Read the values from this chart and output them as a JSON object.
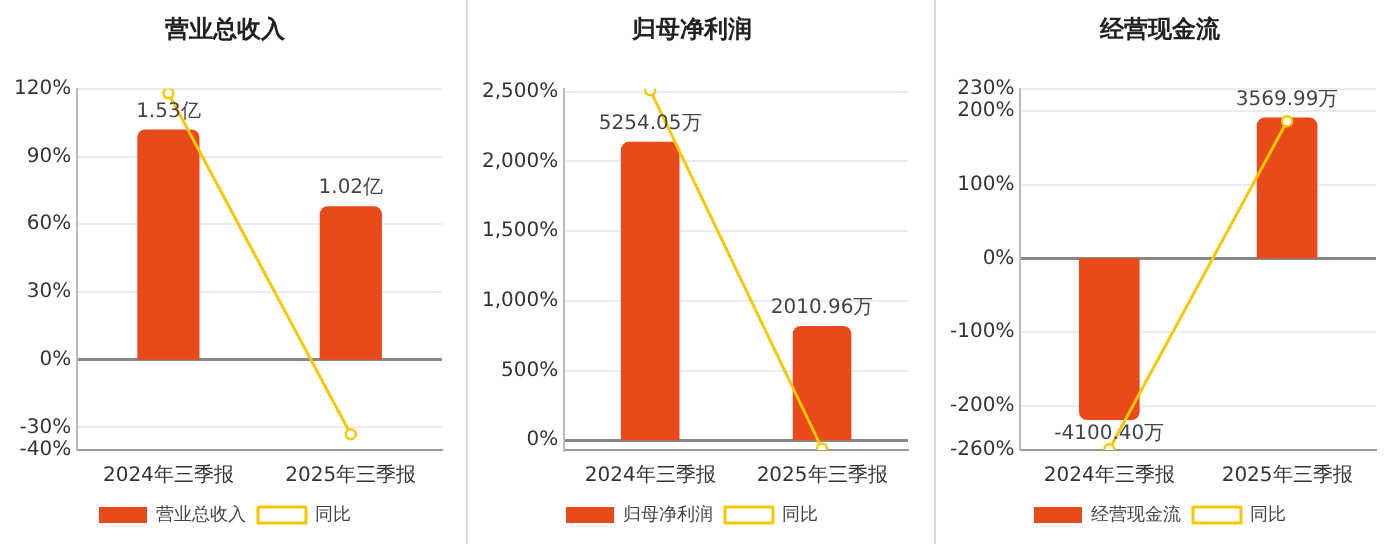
{
  "chart_data": [
    {
      "type": "bar",
      "title": "营业总收入",
      "categories": [
        "2024年三季报",
        "2025年三季报"
      ],
      "legend": "bottom",
      "grid": "y",
      "series": [
        {
          "name": "营业总收入",
          "color": "#e84a1b",
          "axis": "y2",
          "values": [
            1.53,
            1.02
          ],
          "value_labels": [
            "1.53亿",
            "1.02亿"
          ]
        },
        {
          "name": "同比",
          "type": "line",
          "color": "#f5c800",
          "marker": "circle",
          "values": [
            118,
            -33
          ]
        }
      ],
      "ylim": [
        -40,
        120
      ],
      "yticks": [
        {
          "value": -40,
          "label": "-40%"
        },
        {
          "value": -30,
          "label": "-30%"
        },
        {
          "value": 0,
          "label": "0%"
        },
        {
          "value": 30,
          "label": "30%"
        },
        {
          "value": 60,
          "label": "60%"
        },
        {
          "value": 90,
          "label": "90%"
        },
        {
          "value": 120,
          "label": "120%"
        }
      ],
      "y2lim": [
        -0.6,
        1.8
      ]
    },
    {
      "type": "bar",
      "title": "归母净利润",
      "categories": [
        "2024年三季报",
        "2025年三季报"
      ],
      "legend": "bottom",
      "grid": "y",
      "series": [
        {
          "name": "归母净利润",
          "color": "#e84a1b",
          "axis": "y2",
          "values": [
            5254.05,
            2010.96
          ],
          "value_labels": [
            "5254.05万",
            "2010.96万"
          ]
        },
        {
          "name": "同比",
          "type": "line",
          "color": "#f5c800",
          "marker": "circle",
          "values": [
            2510,
            -60
          ]
        }
      ],
      "ylim": [
        -70,
        2520
      ],
      "yticks": [
        {
          "value": 0,
          "label": "0%"
        },
        {
          "value": 500,
          "label": "500%"
        },
        {
          "value": 1000,
          "label": "1,000%"
        },
        {
          "value": 1500,
          "label": "1,500%"
        },
        {
          "value": 2000,
          "label": "2,000%"
        },
        {
          "value": 2500,
          "label": "2,500%"
        }
      ],
      "y2lim": [
        -172,
        6187
      ]
    },
    {
      "type": "bar",
      "title": "经营现金流",
      "categories": [
        "2024年三季报",
        "2025年三季报"
      ],
      "legend": "bottom",
      "grid": "y",
      "series": [
        {
          "name": "经营现金流",
          "color": "#e84a1b",
          "axis": "y2",
          "values": [
            -4100.4,
            3569.99
          ],
          "value_labels": [
            "-4100.40万",
            "3569.99万"
          ]
        },
        {
          "name": "同比",
          "type": "line",
          "color": "#f5c800",
          "marker": "circle",
          "values": [
            -259,
            186
          ]
        }
      ],
      "ylim": [
        -260,
        230
      ],
      "yticks": [
        {
          "value": -260,
          "label": "-260%"
        },
        {
          "value": -200,
          "label": "-200%"
        },
        {
          "value": -100,
          "label": "-100%"
        },
        {
          "value": 0,
          "label": "0%"
        },
        {
          "value": 100,
          "label": "100%"
        },
        {
          "value": 200,
          "label": "200%"
        },
        {
          "value": 230,
          "label": "230%"
        }
      ],
      "y2lim": [
        -4862,
        4301
      ]
    }
  ]
}
